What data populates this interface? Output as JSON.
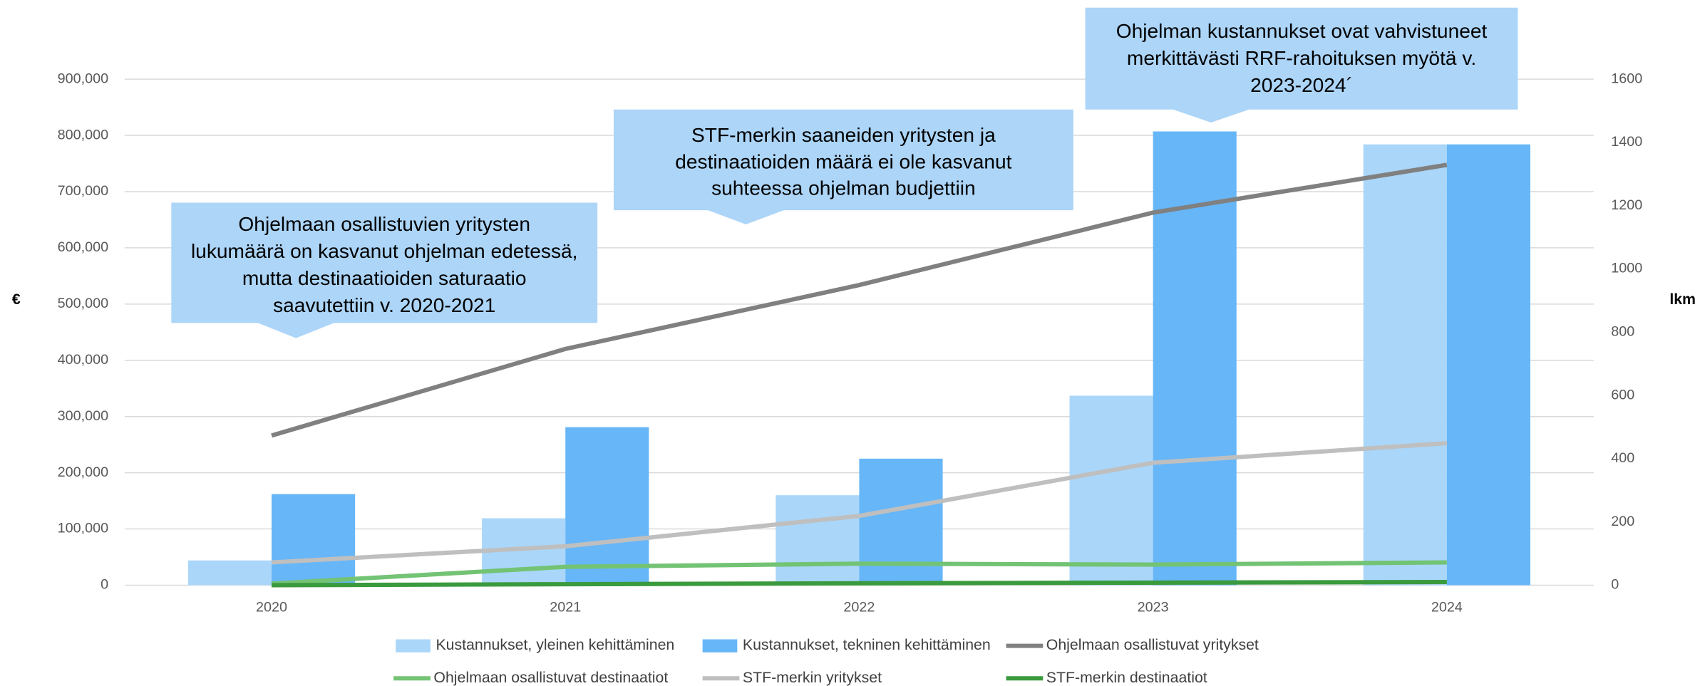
{
  "chart_data": {
    "type": "bar",
    "categories": [
      "2020",
      "2021",
      "2022",
      "2023",
      "2024"
    ],
    "y_label": "€",
    "y2_label": "lkm",
    "ylim": [
      0,
      900000
    ],
    "yticks": [
      0,
      {
        "value": 100000,
        "label": "100,000"
      },
      {
        "value": 200000,
        "label": "200,000"
      },
      {
        "value": 300000,
        "label": "300,000"
      },
      {
        "value": 400000,
        "label": "400,000"
      },
      {
        "value": 500000,
        "label": "500,000"
      },
      {
        "value": 600000,
        "label": "600,000"
      },
      {
        "value": 700000,
        "label": "700,000"
      },
      {
        "value": 800000,
        "label": "800,000"
      },
      {
        "value": 900000,
        "label": "900,000"
      }
    ],
    "y2lim": [
      0,
      1600
    ],
    "y2ticks": [
      0,
      200,
      400,
      600,
      800,
      1000,
      1200,
      1400,
      1600
    ],
    "grid": true,
    "legend": "bottom",
    "series": [
      {
        "name": "Kustannukset, yleinen kehittäminen",
        "type": "bar",
        "color": "#aad6f9",
        "values": [
          44000,
          119000,
          160000,
          337000,
          784000
        ]
      },
      {
        "name": "Kustannukset, tekninen kehittäminen",
        "type": "bar",
        "color": "#66b6f8",
        "values": [
          162000,
          281000,
          225000,
          807000,
          784000
        ]
      },
      {
        "name": "Ohjelmaan osallistuvat yritykset",
        "type": "line",
        "axis": "y2",
        "color": "#808080",
        "values": [
          473,
          747,
          949,
          1178,
          1329
        ]
      },
      {
        "name": "Ohjelmaan osallistuvat destinaatiot",
        "type": "line",
        "axis": "y2",
        "color": "#73c374",
        "values": [
          5,
          58,
          68,
          65,
          72
        ]
      },
      {
        "name": "STF-merkin yritykset",
        "type": "line",
        "axis": "y2",
        "color": "#bfbfbf",
        "values": [
          72,
          123,
          219,
          387,
          449
        ]
      },
      {
        "name": "STF-merkin destinaatiot",
        "type": "line",
        "axis": "y2",
        "color": "#3a9a3e",
        "values": [
          0,
          3,
          6,
          8,
          10
        ]
      }
    ],
    "annotations": [
      [
        "Ohjelmaan osallistuvien yritysten",
        "lukumäärä on kasvanut ohjelman edetessä,",
        "mutta destinaatioiden saturaatio",
        "saavutettiin v. 2020-2021"
      ],
      [
        "STF-merkin saaneiden yritysten ja",
        "destinaatioiden määrä ei ole kasvanut",
        "suhteessa ohjelman budjettiin"
      ],
      [
        "Ohjelman kustannukset ovat vahvistuneet",
        "merkittävästi RRF-rahoituksen myötä v.",
        "2023-2024´"
      ]
    ]
  }
}
